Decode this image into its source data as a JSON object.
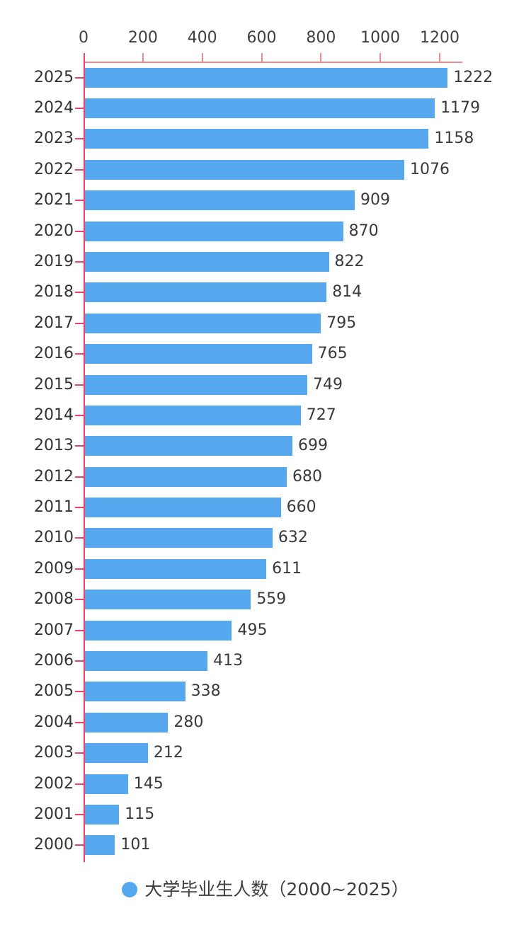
{
  "chart_data": {
    "type": "bar",
    "orientation": "horizontal",
    "title": "",
    "xlabel": "",
    "ylabel": "",
    "categories": [
      "2025",
      "2024",
      "2023",
      "2022",
      "2021",
      "2020",
      "2019",
      "2018",
      "2017",
      "2016",
      "2015",
      "2014",
      "2013",
      "2012",
      "2011",
      "2010",
      "2009",
      "2008",
      "2007",
      "2006",
      "2005",
      "2004",
      "2003",
      "2002",
      "2001",
      "2000"
    ],
    "values": [
      1222,
      1179,
      1158,
      1076,
      909,
      870,
      822,
      814,
      795,
      765,
      749,
      727,
      699,
      680,
      660,
      632,
      611,
      559,
      495,
      413,
      338,
      280,
      212,
      145,
      115,
      101
    ],
    "x_axis": {
      "position": "top",
      "ticks": [
        0,
        200,
        400,
        600,
        800,
        1000,
        1200
      ],
      "xlim": [
        0,
        1280
      ],
      "grid": false
    },
    "legend": {
      "label": "大学毕业生人数（2000~2025）",
      "position": "bottom",
      "marker": "circle"
    },
    "colors": {
      "bar": "#55a8ee",
      "x_axis_line": "#ef8b8b",
      "y_axis_line": "#ee4068",
      "tick_label": "#3f3f3f",
      "category_label": "#333333",
      "value_label": "#3a3a3a",
      "legend_text": "#3e3e3e"
    }
  }
}
